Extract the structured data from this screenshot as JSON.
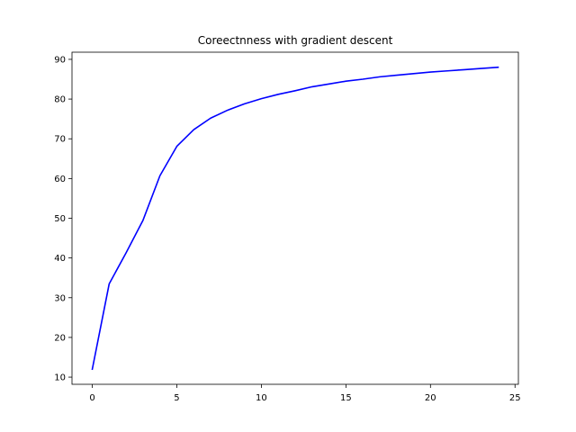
{
  "chart_data": {
    "type": "line",
    "title": "Coreectnness with gradient descent",
    "xlabel": "",
    "ylabel": "",
    "xlim": [
      -1.2,
      25.2
    ],
    "ylim": [
      8.2,
      91.8
    ],
    "x_ticks": [
      0,
      5,
      10,
      15,
      20,
      25
    ],
    "y_ticks": [
      10,
      20,
      30,
      40,
      50,
      60,
      70,
      80,
      90
    ],
    "grid": false,
    "legend": "none",
    "series": [
      {
        "color": "#0000ff",
        "x": [
          0,
          1,
          2,
          3,
          4,
          5,
          6,
          7,
          8,
          9,
          10,
          11,
          12,
          13,
          14,
          15,
          16,
          17,
          18,
          19,
          20,
          21,
          22,
          23,
          24
        ],
        "y": [
          12.0,
          33.5,
          41.3,
          49.5,
          60.7,
          68.1,
          72.3,
          75.2,
          77.2,
          78.8,
          80.1,
          81.2,
          82.1,
          83.1,
          83.8,
          84.5,
          85.0,
          85.6,
          86.0,
          86.4,
          86.8,
          87.1,
          87.4,
          87.7,
          88.0
        ]
      }
    ]
  }
}
